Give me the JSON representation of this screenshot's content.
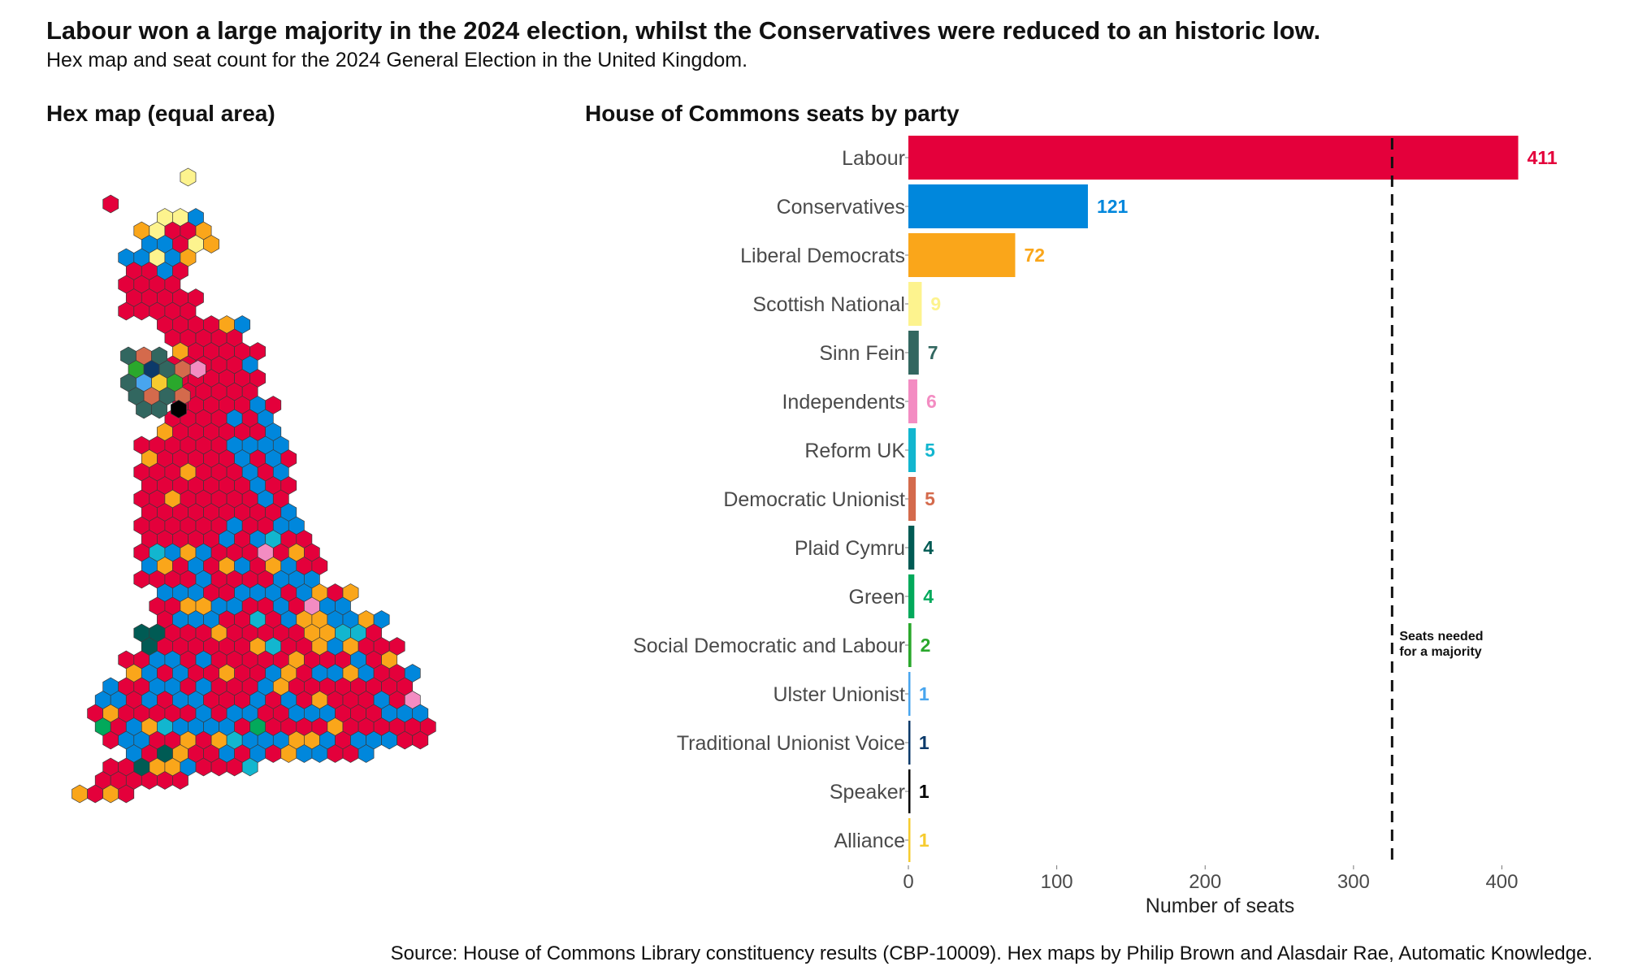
{
  "title": "Labour won a large majority in the 2024 election, whilst the Conservatives were reduced to an historic low.",
  "subtitle": "Hex map and seat count for the 2024 General Election in the United Kingdom.",
  "hex_panel": {
    "title": "Hex map (equal area)"
  },
  "bar_panel": {
    "title": "House of Commons seats by party"
  },
  "source": "Source: House of Commons Library constituency results (CBP-10009). Hex maps by Philip Brown and Alasdair Rae, Automatic Knowledge.",
  "colors": {
    "Labour": "#e4003b",
    "Conservatives": "#0087dc",
    "Liberal Democrats": "#faa61a",
    "Scottish National": "#fdf38e",
    "Sinn Fein": "#326760",
    "Independents": "#f38cc2",
    "Reform UK": "#12b6cf",
    "Democratic Unionist": "#d46a4c",
    "Plaid Cymru": "#005b54",
    "Green": "#02a95b",
    "Social Democratic and Labour": "#2aa82c",
    "Ulster Unionist": "#48a5ee",
    "Traditional Unionist Voice": "#0c3a6a",
    "Speaker": "#000000",
    "Alliance": "#f6cb2f"
  },
  "chart_data": [
    {
      "type": "bar",
      "orientation": "horizontal",
      "title": "House of Commons seats by party",
      "categories": [
        "Labour",
        "Conservatives",
        "Liberal Democrats",
        "Scottish National",
        "Sinn Fein",
        "Independents",
        "Reform UK",
        "Democratic Unionist",
        "Plaid Cymru",
        "Green",
        "Social Democratic and Labour",
        "Ulster Unionist",
        "Traditional Unionist Voice",
        "Speaker",
        "Alliance"
      ],
      "values": [
        411,
        121,
        72,
        9,
        7,
        6,
        5,
        5,
        4,
        4,
        2,
        1,
        1,
        1,
        1
      ],
      "xlabel": "Number of seats",
      "ylabel": "",
      "xlim": [
        0,
        420
      ],
      "xticks": [
        0,
        100,
        200,
        300,
        400
      ],
      "reference_line": {
        "value": 326,
        "label": "Seats needed for a majority",
        "style": "dashed"
      },
      "grid": false
    }
  ],
  "hex_map": {
    "description": "Equal-area hex cartogram of UK constituencies coloured by winning party"
  }
}
